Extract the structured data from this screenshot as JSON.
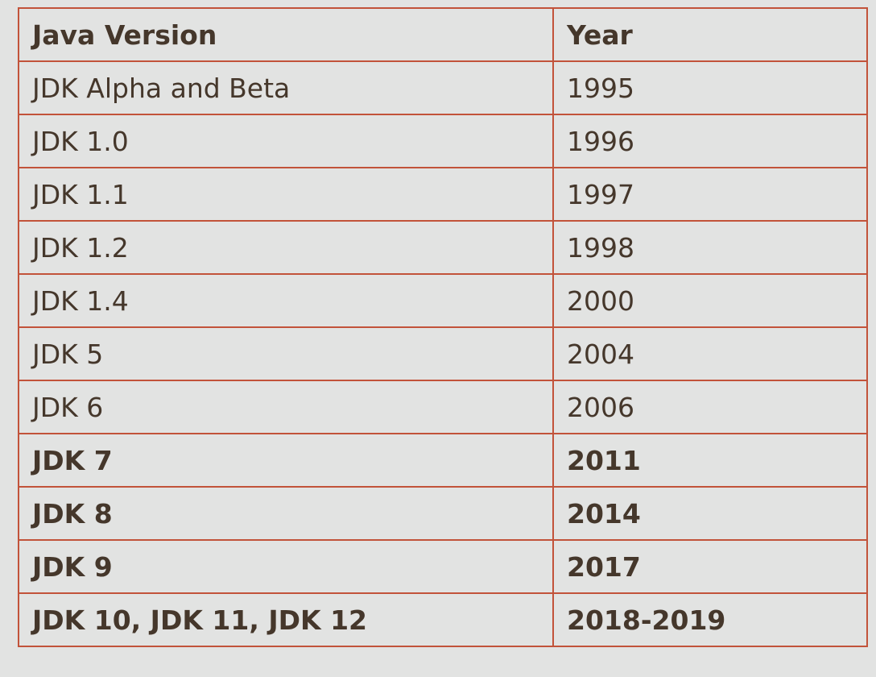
{
  "table": {
    "headers": [
      "Java Version",
      "Year"
    ],
    "rows": [
      {
        "version": "JDK Alpha and Beta",
        "year": "1995",
        "bold": false
      },
      {
        "version": "JDK 1.0",
        "year": "1996",
        "bold": false
      },
      {
        "version": "JDK 1.1",
        "year": "1997",
        "bold": false
      },
      {
        "version": "JDK 1.2",
        "year": "1998",
        "bold": false
      },
      {
        "version": "JDK 1.4",
        "year": "2000",
        "bold": false
      },
      {
        "version": "JDK 5",
        "year": "2004",
        "bold": false
      },
      {
        "version": "JDK 6",
        "year": "2006",
        "bold": false
      },
      {
        "version": "JDK 7",
        "year": "2011",
        "bold": true
      },
      {
        "version": "JDK 8",
        "year": "2014",
        "bold": true
      },
      {
        "version": "JDK 9",
        "year": "2017",
        "bold": true
      },
      {
        "version": "JDK 10, JDK 11, JDK 12",
        "year": "2018-2019",
        "bold": true
      }
    ]
  },
  "colors": {
    "background": "#e2e3e2",
    "border": "#c2533a",
    "text": "#45372b"
  }
}
